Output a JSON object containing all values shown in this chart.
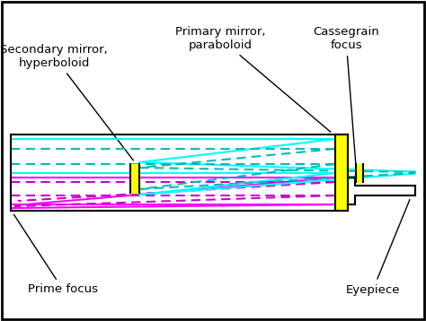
{
  "bg_color": "#ffffff",
  "tube_color": "#000000",
  "mirror_color": "#ffff00",
  "ray_cyan_solid": "#00ffff",
  "ray_cyan_dashed": "#00bbbb",
  "ray_magenta_solid": "#ff00ff",
  "ray_magenta_dashed": "#cc00cc",
  "annotation_color": "#000000",
  "labels": {
    "secondary_mirror": "Secondary mirror,\nhyperboloid",
    "primary_mirror": "Primary mirror,\nparaboloid",
    "cassegrain_focus": "Cassegrain\nfocus",
    "prime_focus": "Prime focus",
    "eyepiece": "Eyepiece"
  },
  "figsize": [
    4.74,
    3.58
  ],
  "dpi": 100
}
